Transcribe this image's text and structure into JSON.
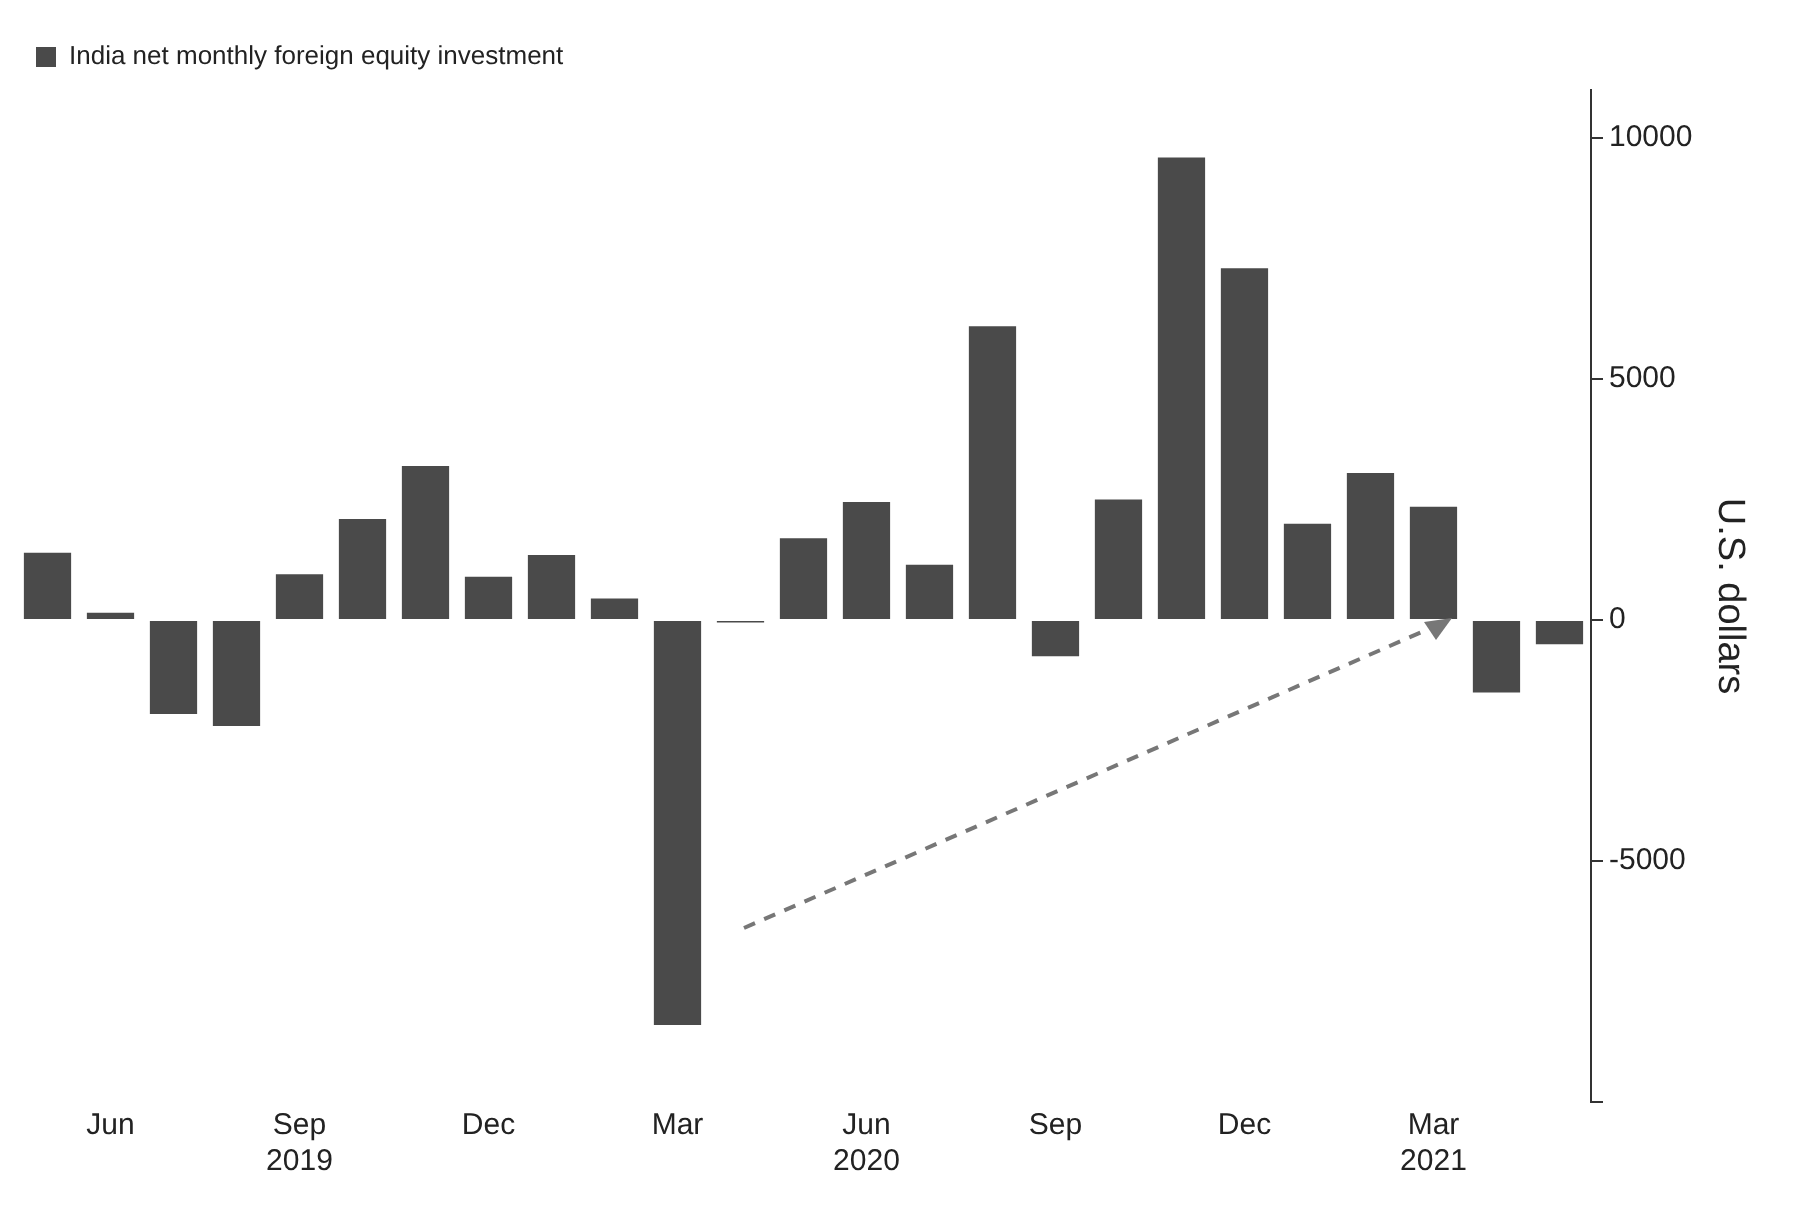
{
  "chart_data": {
    "type": "bar",
    "ylabel": "U.S. dollars",
    "categories": [
      null,
      "Jun",
      null,
      null,
      "Sep\n2019",
      null,
      null,
      "Dec",
      null,
      null,
      "Mar",
      null,
      null,
      "Jun\n2020",
      null,
      null,
      "Sep",
      null,
      null,
      "Dec",
      null,
      null,
      "Mar\n2021",
      null,
      null
    ],
    "series": [
      {
        "name": "India net monthly foreign equity investment",
        "color": "#4a4a4a",
        "values": [
          1400,
          150,
          -1950,
          -2200,
          950,
          2100,
          3200,
          900,
          1350,
          450,
          -8400,
          -50,
          1700,
          2450,
          1150,
          6100,
          -750,
          2500,
          9600,
          7300,
          2000,
          3050,
          2350,
          -1500,
          -500
        ]
      }
    ],
    "ylim": [
      -10000,
      11000
    ],
    "yticks": [
      {
        "value": -10000,
        "label": null
      },
      -5000,
      0,
      5000,
      10000
    ],
    "grid": false,
    "legend": "top left"
  }
}
